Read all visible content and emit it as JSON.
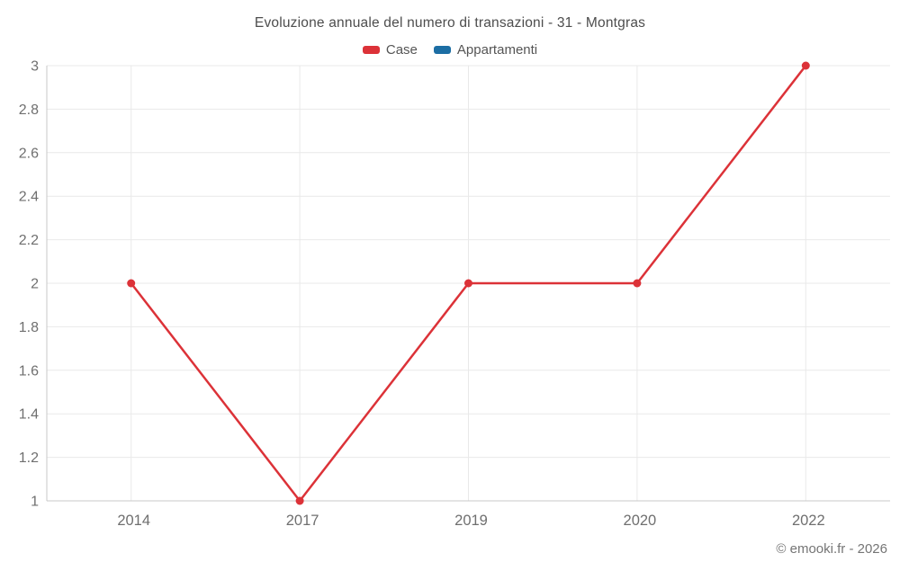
{
  "chart_data": {
    "type": "line",
    "title": "Evoluzione annuale del numero di transazioni - 31 - Montgras",
    "categories": [
      "2014",
      "2017",
      "2019",
      "2020",
      "2022"
    ],
    "series": [
      {
        "name": "Case",
        "color": "#dc3238",
        "values": [
          2,
          1,
          2,
          2,
          3
        ]
      },
      {
        "name": "Appartamenti",
        "color": "#1c6ea4",
        "values": []
      }
    ],
    "ylim": [
      1,
      3
    ],
    "yticks": [
      {
        "value": 1,
        "label": "1"
      },
      {
        "value": 1.2,
        "label": "1.2"
      },
      {
        "value": 1.4,
        "label": "1.4"
      },
      {
        "value": 1.6,
        "label": "1.6"
      },
      {
        "value": 1.8,
        "label": "1.8"
      },
      {
        "value": 2,
        "label": "2"
      },
      {
        "value": 2.2,
        "label": "2.2"
      },
      {
        "value": 2.4,
        "label": "2.4"
      },
      {
        "value": 2.6,
        "label": "2.6"
      },
      {
        "value": 2.8,
        "label": "2.8"
      },
      {
        "value": 3,
        "label": "3"
      }
    ],
    "grid": true,
    "legend_position": "top",
    "xlabel": "",
    "ylabel": ""
  },
  "watermark": "© emooki.fr - 2026",
  "colors": {
    "grid_line": "#e9e9e9",
    "axis_line": "#c8c8c8",
    "tick_text": "#6f6f6f",
    "title_text": "#4d4d4d",
    "watermark_text": "#757575"
  }
}
